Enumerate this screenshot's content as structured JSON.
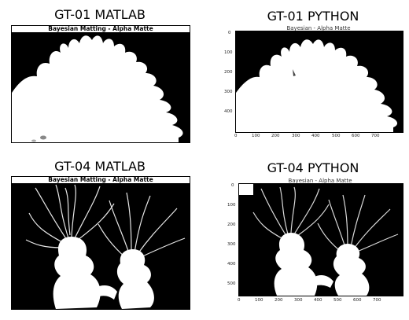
{
  "panels": [
    {
      "title": "GT-01 MATLAB",
      "inner_title": "Bayesian Matting - Alpha Matte"
    },
    {
      "title": "GT-01 PYTHON",
      "inner_title": "Bayesian - Alpha Matte",
      "y_ticks": [
        "0",
        "100",
        "200",
        "300",
        "400"
      ],
      "x_ticks": [
        "0",
        "100",
        "200",
        "300",
        "400",
        "500",
        "600",
        "700"
      ]
    },
    {
      "title": "GT-04 MATLAB",
      "inner_title": "Bayesian Matting - Alpha Matte"
    },
    {
      "title": "GT-04 PYTHON",
      "inner_title": "Bayesian - Alpha Matte",
      "y_ticks": [
        "0",
        "100",
        "200",
        "300",
        "400",
        "500"
      ],
      "x_ticks": [
        "0",
        "100",
        "200",
        "300",
        "400",
        "500",
        "600",
        "700"
      ]
    }
  ]
}
